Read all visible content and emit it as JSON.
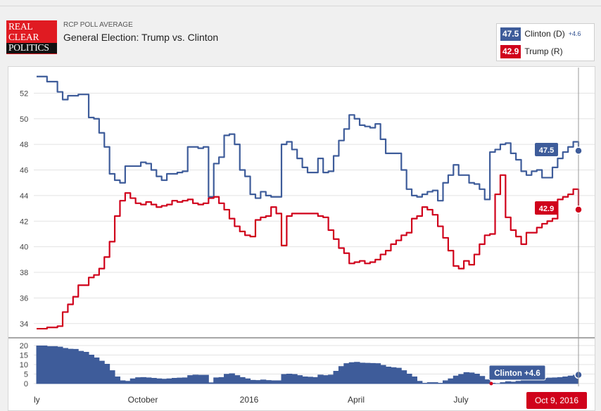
{
  "header": {
    "logo_lines": [
      "REAL",
      "CLEAR",
      "POLITICS"
    ],
    "subtitle": "RCP POLL AVERAGE",
    "title": "General Election: Trump vs. Clinton"
  },
  "legend": {
    "clinton": {
      "value": "47.5",
      "label": "Clinton (D)",
      "spread": "+4.6",
      "color": "#3e5c9a"
    },
    "trump": {
      "value": "42.9",
      "label": "Trump (R)",
      "color": "#d0021b"
    }
  },
  "end_labels": {
    "clinton": "47.5",
    "trump": "42.9"
  },
  "spread_label": "Clinton +4.6",
  "date_label": "Oct 9, 2016",
  "chart_data": {
    "type": "line",
    "x_ticks": [
      "ly",
      "October",
      "2016",
      "April",
      "July"
    ],
    "ylim": [
      33,
      54
    ],
    "y_ticks": [
      34,
      36,
      38,
      40,
      42,
      44,
      46,
      48,
      50,
      52
    ],
    "spread_ylim": [
      0,
      20
    ],
    "spread_ticks": [
      0,
      5,
      10,
      15,
      20
    ],
    "grid": true,
    "series": [
      {
        "name": "Clinton (D)",
        "color": "#3e5c9a",
        "values": [
          53.3,
          53.3,
          52.9,
          52.9,
          52.1,
          51.5,
          51.8,
          51.8,
          51.9,
          51.9,
          50.1,
          50.0,
          48.9,
          47.8,
          45.7,
          45.2,
          45.0,
          46.3,
          46.3,
          46.3,
          46.6,
          46.5,
          46.0,
          45.5,
          45.2,
          45.7,
          45.7,
          45.8,
          45.9,
          47.8,
          47.8,
          47.7,
          47.8,
          43.9,
          46.5,
          47.0,
          48.7,
          48.8,
          48.0,
          46.0,
          45.5,
          44.1,
          43.8,
          44.3,
          44.0,
          43.9,
          43.9,
          48.0,
          48.2,
          47.6,
          46.9,
          46.2,
          45.8,
          45.8,
          46.9,
          45.8,
          45.9,
          47.1,
          48.3,
          49.2,
          50.3,
          50.0,
          49.5,
          49.4,
          49.3,
          49.6,
          48.4,
          47.3,
          47.3,
          47.3,
          46.0,
          44.5,
          44.0,
          43.9,
          44.1,
          44.3,
          44.4,
          43.6,
          45.0,
          45.6,
          46.4,
          45.6,
          45.6,
          45.0,
          44.9,
          44.5,
          43.7,
          47.4,
          47.6,
          48.0,
          48.1,
          47.3,
          46.8,
          45.9,
          45.6,
          45.9,
          46.0,
          45.4,
          45.4,
          46.2,
          46.9,
          47.4,
          47.8,
          48.2,
          47.5
        ],
        "spread": [
          19.8,
          19.8,
          19.5,
          19.5,
          19.2,
          18.5,
          18.1,
          18.0,
          17.0,
          16.5,
          15.0,
          13.5,
          11.8,
          10.2,
          6.8,
          3.5,
          1.5,
          1.2,
          2.5,
          3.1,
          3.2,
          3.0,
          2.8,
          2.5,
          2.3,
          2.5,
          2.8,
          2.9,
          3.0,
          4.2,
          4.5,
          4.4,
          4.4,
          0.4,
          3.0,
          3.2,
          4.9,
          5.2,
          4.2,
          3.2,
          2.5,
          1.7,
          1.6,
          1.9,
          1.6,
          1.5,
          1.5,
          4.8,
          5.0,
          4.8,
          4.2,
          3.5,
          3.4,
          3.2,
          4.5,
          4.2,
          4.5,
          6.5,
          9.0,
          10.5,
          11.0,
          11.2,
          10.8,
          10.7,
          10.6,
          10.5,
          9.6,
          8.7,
          8.4,
          8.1,
          6.8,
          5.0,
          3.5,
          1.2,
          0.2,
          0.5,
          0.5,
          0.2,
          1.5,
          2.5,
          4.0,
          4.8,
          5.8,
          5.6,
          5.0,
          3.8,
          2.0,
          0.2,
          0.0,
          0.5,
          1.0,
          0.8,
          1.2,
          1.5,
          2.0,
          2.5,
          2.6,
          2.8,
          2.9,
          3.0,
          3.2,
          3.5,
          4.0,
          4.4,
          4.6
        ]
      },
      {
        "name": "Trump (R)",
        "color": "#d0021b",
        "values": [
          33.6,
          33.6,
          33.7,
          33.7,
          33.8,
          34.9,
          35.5,
          36.1,
          37.0,
          37.0,
          37.6,
          37.8,
          38.3,
          39.2,
          40.4,
          42.4,
          43.6,
          44.2,
          43.8,
          43.4,
          43.3,
          43.5,
          43.3,
          43.1,
          43.2,
          43.3,
          43.6,
          43.5,
          43.6,
          43.7,
          43.4,
          43.3,
          43.4,
          43.8,
          43.9,
          43.4,
          42.9,
          42.2,
          41.6,
          41.2,
          40.9,
          40.8,
          42.1,
          42.3,
          42.4,
          43.1,
          42.6,
          40.1,
          42.4,
          42.6,
          42.6,
          42.6,
          42.6,
          42.6,
          42.4,
          42.3,
          41.3,
          40.6,
          39.9,
          39.5,
          38.7,
          38.8,
          38.9,
          38.7,
          38.8,
          39.0,
          39.4,
          39.7,
          40.2,
          40.5,
          40.9,
          41.1,
          42.2,
          42.4,
          43.1,
          42.9,
          42.5,
          41.6,
          40.7,
          39.7,
          38.5,
          38.3,
          38.9,
          38.6,
          39.4,
          40.2,
          40.9,
          41.0,
          44.1,
          45.6,
          42.3,
          41.3,
          40.8,
          40.2,
          41.1,
          41.1,
          41.5,
          41.8,
          42.0,
          42.2,
          43.7,
          43.9,
          44.1,
          44.5,
          42.9
        ]
      }
    ],
    "end_values": {
      "Clinton (D)": 47.5,
      "Trump (R)": 42.9
    },
    "annotations": [
      "Clinton +4.6",
      "Oct 9, 2016"
    ]
  }
}
